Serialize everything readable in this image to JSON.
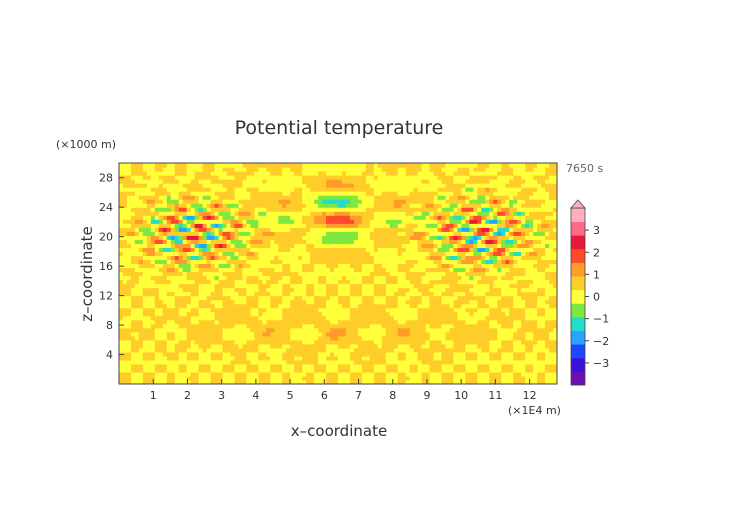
{
  "chart_data": {
    "type": "heatmap",
    "title": "Potential temperature",
    "xlabel": "x–coordinate",
    "ylabel": "z–coordinate",
    "x_unit": "(×1E4 m)",
    "y_unit": "(×1000 m)",
    "time_label": "7650 s",
    "xlim": [
      0,
      12.8
    ],
    "ylim": [
      0,
      30
    ],
    "x_ticks": [
      1,
      2,
      3,
      4,
      5,
      6,
      7,
      8,
      9,
      10,
      11,
      12
    ],
    "y_ticks": [
      4,
      8,
      12,
      16,
      20,
      24,
      28
    ],
    "colorbar": {
      "range": [
        -4,
        4
      ],
      "ticks": [
        3,
        2,
        1,
        0,
        -1,
        -2,
        -3
      ],
      "colors": [
        "#6a0fb0",
        "#3b12d8",
        "#1e46ff",
        "#2aa2ff",
        "#22dccc",
        "#7fe840",
        "#ffff3a",
        "#ffcd2a",
        "#ff9b2a",
        "#ff4a2a",
        "#e8193a",
        "#ff6a8a",
        "#ffb0c0"
      ]
    },
    "background_value": 0.3,
    "field_components": [
      {
        "name": "upper-wave-left",
        "x_center": 2.2,
        "z_center": 20.5,
        "amplitude": 2.6,
        "x_spread": 1.7,
        "z_spread": 5.2
      },
      {
        "name": "upper-wave-right",
        "x_center": 10.6,
        "z_center": 20.5,
        "amplitude": 2.6,
        "x_spread": 1.7,
        "z_spread": 5.2
      },
      {
        "name": "central-column",
        "x_center": 6.4,
        "z_center": 23,
        "amplitude": 1.7,
        "x_spread": 2.0,
        "z_spread": 5.0
      },
      {
        "name": "lower-band",
        "x_center": 6.4,
        "z_center": 7.5,
        "amplitude": 0.9,
        "x_spread": 4.0,
        "z_spread": 2.5
      }
    ]
  }
}
